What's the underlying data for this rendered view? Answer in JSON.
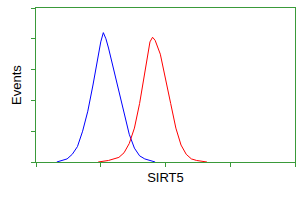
{
  "chart_data": {
    "type": "line",
    "xlabel": "SIRT5",
    "ylabel": "Events",
    "series": [
      {
        "color": "#0000ff",
        "x": [
          8,
          10,
          12,
          14,
          16,
          18,
          20,
          22,
          24,
          25,
          26,
          27,
          28,
          30,
          32,
          34,
          36,
          38,
          40,
          42,
          44,
          46
        ],
        "values": [
          0,
          1,
          2,
          5,
          10,
          20,
          33,
          50,
          68,
          78,
          84,
          80,
          74,
          60,
          45,
          30,
          18,
          9,
          4,
          2,
          1,
          0
        ]
      },
      {
        "color": "#ff0000",
        "x": [
          24,
          28,
          32,
          34,
          36,
          38,
          40,
          42,
          43,
          44,
          45,
          46,
          48,
          50,
          52,
          54,
          56,
          58,
          60,
          62,
          66
        ],
        "values": [
          0,
          1,
          3,
          6,
          12,
          22,
          38,
          58,
          70,
          78,
          81,
          79,
          70,
          55,
          38,
          22,
          11,
          5,
          2,
          1,
          0
        ]
      }
    ],
    "xlim": [
      0,
      100
    ],
    "ylim": [
      0,
      100
    ],
    "xticks": [
      0,
      25,
      50,
      75,
      100
    ],
    "yticks": [
      0,
      20,
      40,
      60,
      80,
      100
    ],
    "grid": false,
    "tick_labels": false
  }
}
